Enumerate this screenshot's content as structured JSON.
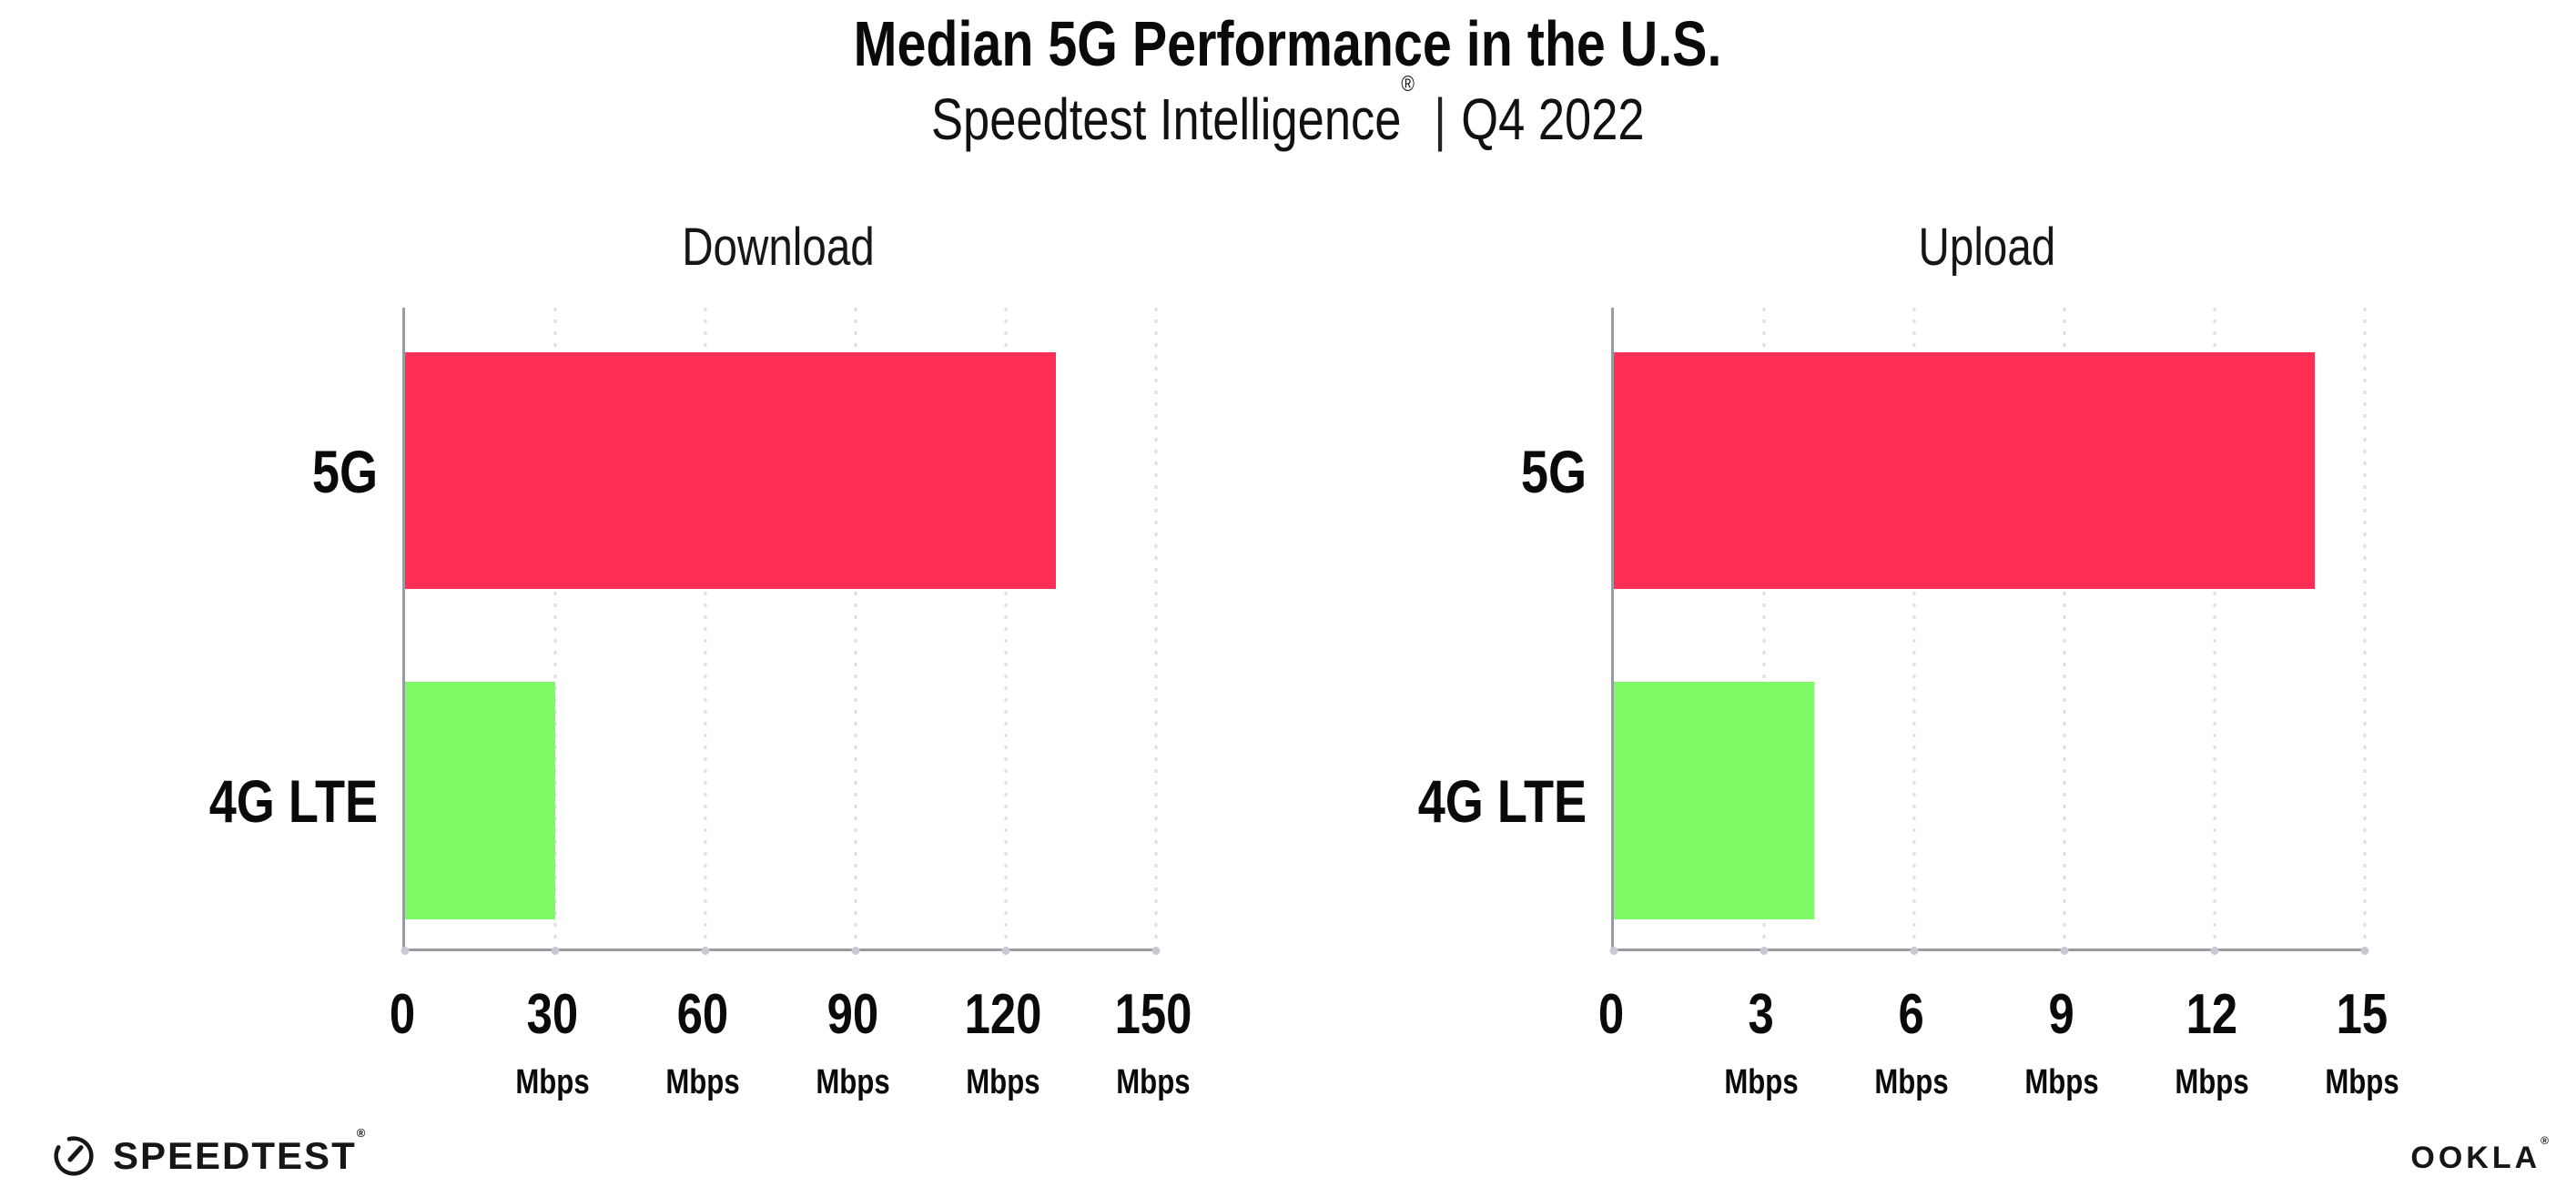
{
  "header": {
    "title": "Median 5G Performance in the U.S.",
    "subtitle_brand": "Speedtest Intelligence",
    "subtitle_reg": "®",
    "subtitle_separator": "|",
    "subtitle_period": "Q4 2022"
  },
  "chart_data": [
    {
      "type": "bar",
      "orientation": "horizontal",
      "title": "Download",
      "categories": [
        "5G",
        "4G LTE"
      ],
      "values": [
        130,
        30
      ],
      "unit": "Mbps",
      "xlim": [
        0,
        150
      ],
      "xticks": [
        0,
        30,
        60,
        90,
        120,
        150
      ],
      "tick_unit_label": "Mbps",
      "bar_colors": [
        "#ff2e55",
        "#7dfa66"
      ],
      "grid": "dotted-vertical",
      "legend": "none"
    },
    {
      "type": "bar",
      "orientation": "horizontal",
      "title": "Upload",
      "categories": [
        "5G",
        "4G LTE"
      ],
      "values": [
        14,
        4
      ],
      "unit": "Mbps",
      "xlim": [
        0,
        15
      ],
      "xticks": [
        0,
        3,
        6,
        9,
        12,
        15
      ],
      "tick_unit_label": "Mbps",
      "bar_colors": [
        "#ff2e55",
        "#7dfa66"
      ],
      "grid": "dotted-vertical",
      "legend": "none"
    }
  ],
  "footer": {
    "speedtest_logo_text": "SPEEDTEST",
    "speedtest_reg": "®",
    "ookla_logo_text": "OOKLA",
    "ookla_reg": "®"
  },
  "colors": {
    "bar_5g": "#ff2e55",
    "bar_4g_lte": "#7dfa66",
    "axis": "#9a9aa3",
    "gridline": "#dedee9",
    "text": "#0a0a0a",
    "background": "#ffffff"
  }
}
